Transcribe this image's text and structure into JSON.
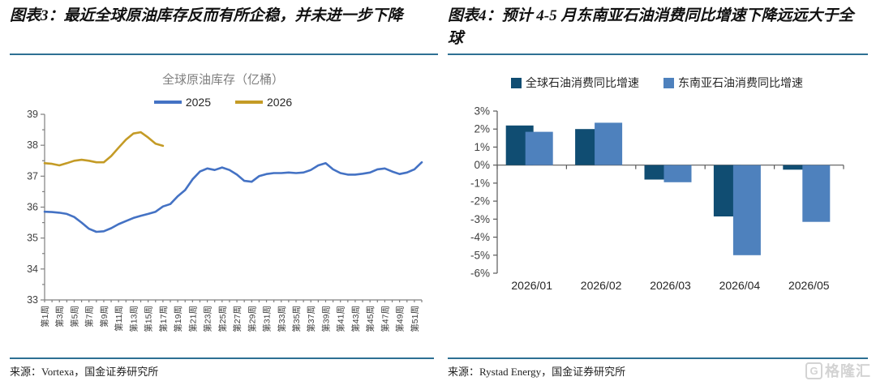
{
  "colors": {
    "divider": "#2E7093",
    "axis": "#7F7F7F",
    "axis_text": "#404040",
    "line_2025": "#4472C4",
    "line_2026": "#C49B26",
    "bar_global": "#104D72",
    "bar_sea": "#4E81BD",
    "watermark": "#D3D3D3"
  },
  "left_panel": {
    "title": "图表3：最近全球原油库存反而有所企稳，并未进一步下降",
    "source": "来源：Vortexa，国金证券研究所",
    "chart_data": {
      "type": "line",
      "title": "全球原油库存（亿桶）",
      "ylim": [
        33,
        39
      ],
      "ytick_labels": [
        "39",
        "38",
        "37",
        "36",
        "35",
        "34",
        "33"
      ],
      "x_unit": "周",
      "x_tick_labels": [
        "第1周",
        "第3周",
        "第5周",
        "第7周",
        "第9周",
        "第11周",
        "第13周",
        "第15周",
        "第17周",
        "第19周",
        "第21周",
        "第23周",
        "第25周",
        "第27周",
        "第29周",
        "第31周",
        "第33周",
        "第35周",
        "第37周",
        "第39周",
        "第41周",
        "第43周",
        "第45周",
        "第47周",
        "第49周",
        "第51周"
      ],
      "legend_position": "top",
      "grid": false,
      "series": [
        {
          "name": "2025",
          "color": "#4472C4",
          "values": [
            35.85,
            35.84,
            35.82,
            35.78,
            35.68,
            35.5,
            35.3,
            35.2,
            35.22,
            35.32,
            35.45,
            35.55,
            35.65,
            35.72,
            35.78,
            35.85,
            36.02,
            36.1,
            36.35,
            36.55,
            36.9,
            37.15,
            37.25,
            37.2,
            37.28,
            37.2,
            37.05,
            36.85,
            36.82,
            37.0,
            37.07,
            37.1,
            37.1,
            37.12,
            37.1,
            37.12,
            37.2,
            37.35,
            37.42,
            37.22,
            37.1,
            37.05,
            37.05,
            37.08,
            37.12,
            37.22,
            37.25,
            37.15,
            37.07,
            37.12,
            37.22,
            37.45
          ]
        },
        {
          "name": "2026",
          "color": "#C49B26",
          "values": [
            37.42,
            37.4,
            37.35,
            37.42,
            37.5,
            37.53,
            37.5,
            37.45,
            37.45,
            37.65,
            37.92,
            38.18,
            38.38,
            38.42,
            38.25,
            38.05,
            37.98
          ]
        }
      ]
    }
  },
  "right_panel": {
    "title": "图表4：预计 4-5 月东南亚石油消费同比增速下降远远大于全球",
    "source": "来源：Rystad Energy，国金证券研究所",
    "chart_data": {
      "type": "bar",
      "categories": [
        "2026/01",
        "2026/02",
        "2026/03",
        "2026/04",
        "2026/05"
      ],
      "ylim": [
        -6,
        3
      ],
      "ytick_labels": [
        "3%",
        "2%",
        "1%",
        "0%",
        "-1%",
        "-2%",
        "-3%",
        "-4%",
        "-5%",
        "-6%"
      ],
      "legend_position": "top",
      "grid": false,
      "series": [
        {
          "name": "全球石油消费同比增速",
          "color": "#104D72",
          "values": [
            2.2,
            2.0,
            -0.8,
            -2.85,
            -0.25
          ]
        },
        {
          "name": "东南亚石油消费同比增速",
          "color": "#4E81BD",
          "values": [
            1.85,
            2.35,
            -0.95,
            -5.0,
            -3.15
          ]
        }
      ]
    }
  },
  "watermark": {
    "icon": "G",
    "text": "格隆汇"
  }
}
